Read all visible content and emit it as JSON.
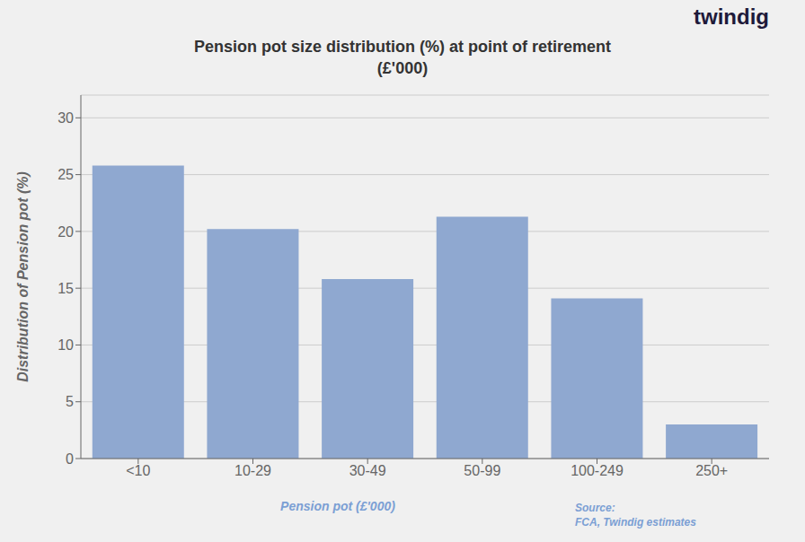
{
  "chart_data": {
    "type": "bar",
    "title": "Pension pot size distribution (%) at point of retirement\n(£'000)",
    "categories": [
      "<10",
      "10-29",
      "30-49",
      "50-99",
      "100-249",
      "250+"
    ],
    "values": [
      25.8,
      20.2,
      15.8,
      21.3,
      14.1,
      3.0
    ],
    "color": "#8fa8d0",
    "ylabel": "Distribution of Pension pot (%)",
    "xlabel": "Pension pot (£'000)",
    "annotations": [
      "Source:\nFCA, Twindig estimates",
      "twindig"
    ],
    "ylim": [
      0,
      32
    ],
    "yticks": [
      0,
      5,
      10,
      15,
      20,
      25,
      30
    ],
    "grid": true
  }
}
